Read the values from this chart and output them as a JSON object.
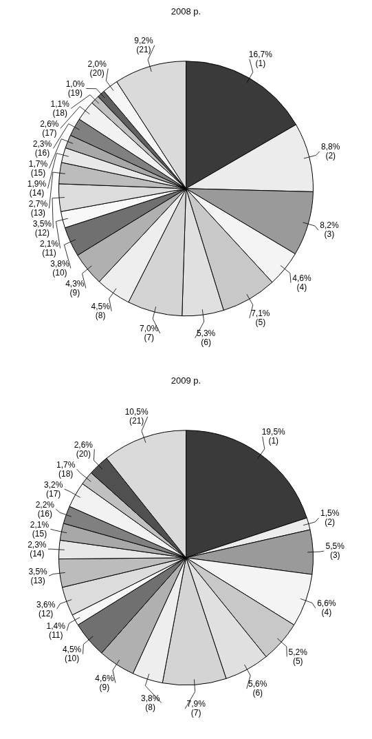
{
  "chart_data": [
    {
      "type": "pie",
      "title": "2008 р.",
      "legend": false,
      "categories": [
        "(1)",
        "(2)",
        "(3)",
        "(4)",
        "(5)",
        "(6)",
        "(7)",
        "(8)",
        "(9)",
        "(10)",
        "(11)",
        "(12)",
        "(13)",
        "(14)",
        "(15)",
        "(16)",
        "(17)",
        "(18)",
        "(19)",
        "(20)",
        "(21)"
      ],
      "values": [
        16.7,
        8.8,
        8.2,
        4.6,
        7.1,
        5.3,
        7.0,
        4.5,
        4.3,
        3.8,
        2.1,
        3.5,
        2.7,
        1.9,
        1.7,
        2.3,
        2.6,
        1.1,
        1.0,
        2.0,
        9.2
      ],
      "value_labels": [
        "16,7%",
        "8,8%",
        "8,2%",
        "4,6%",
        "7,1%",
        "5,3%",
        "7,0%",
        "4,5%",
        "4,3%",
        "3,8%",
        "2,1%",
        "3,5%",
        "2,7%",
        "1,9%",
        "1,7%",
        "2,3%",
        "2,6%",
        "1,1%",
        "1,0%",
        "2,0%",
        "9,2%"
      ],
      "colors": [
        "#3a3a3a",
        "#ececec",
        "#9a9a9a",
        "#f4f4f4",
        "#c8c8c8",
        "#e0e0e0",
        "#d4d4d4",
        "#eeeeee",
        "#b0b0b0",
        "#707070",
        "#f8f8f8",
        "#dcdcdc",
        "#bcbcbc",
        "#e8e8e8",
        "#a8a8a8",
        "#808080",
        "#f2f2f2",
        "#c0c0c0",
        "#606060",
        "#f6f6f6",
        "#dadada"
      ]
    },
    {
      "type": "pie",
      "title": "2009 р.",
      "legend": false,
      "categories": [
        "(1)",
        "(2)",
        "(3)",
        "(4)",
        "(5)",
        "(6)",
        "(7)",
        "(8)",
        "(9)",
        "(10)",
        "(11)",
        "(12)",
        "(13)",
        "(14)",
        "(15)",
        "(16)",
        "(17)",
        "(18)",
        "(20)",
        "(21)"
      ],
      "values": [
        19.5,
        1.5,
        5.5,
        6.6,
        5.2,
        5.6,
        7.9,
        3.8,
        4.6,
        4.5,
        1.4,
        3.6,
        3.5,
        2.3,
        2.1,
        2.2,
        3.2,
        1.7,
        2.6,
        10.5
      ],
      "value_labels": [
        "19,5%",
        "1,5%",
        "5,5%",
        "6,6%",
        "5,2%",
        "5,6%",
        "7,9%",
        "3,8%",
        "4,6%",
        "4,5%",
        "1,4%",
        "3,6%",
        "3,5%",
        "2,3%",
        "2,1%",
        "2,2%",
        "3,2%",
        "1,7%",
        "2,6%",
        "10,5%"
      ],
      "colors": [
        "#3a3a3a",
        "#ececec",
        "#9a9a9a",
        "#f4f4f4",
        "#c8c8c8",
        "#e0e0e0",
        "#d4d4d4",
        "#eeeeee",
        "#b0b0b0",
        "#707070",
        "#f8f8f8",
        "#dcdcdc",
        "#bcbcbc",
        "#e8e8e8",
        "#a8a8a8",
        "#808080",
        "#f2f2f2",
        "#c0c0c0",
        "#505050",
        "#dadada"
      ]
    }
  ]
}
